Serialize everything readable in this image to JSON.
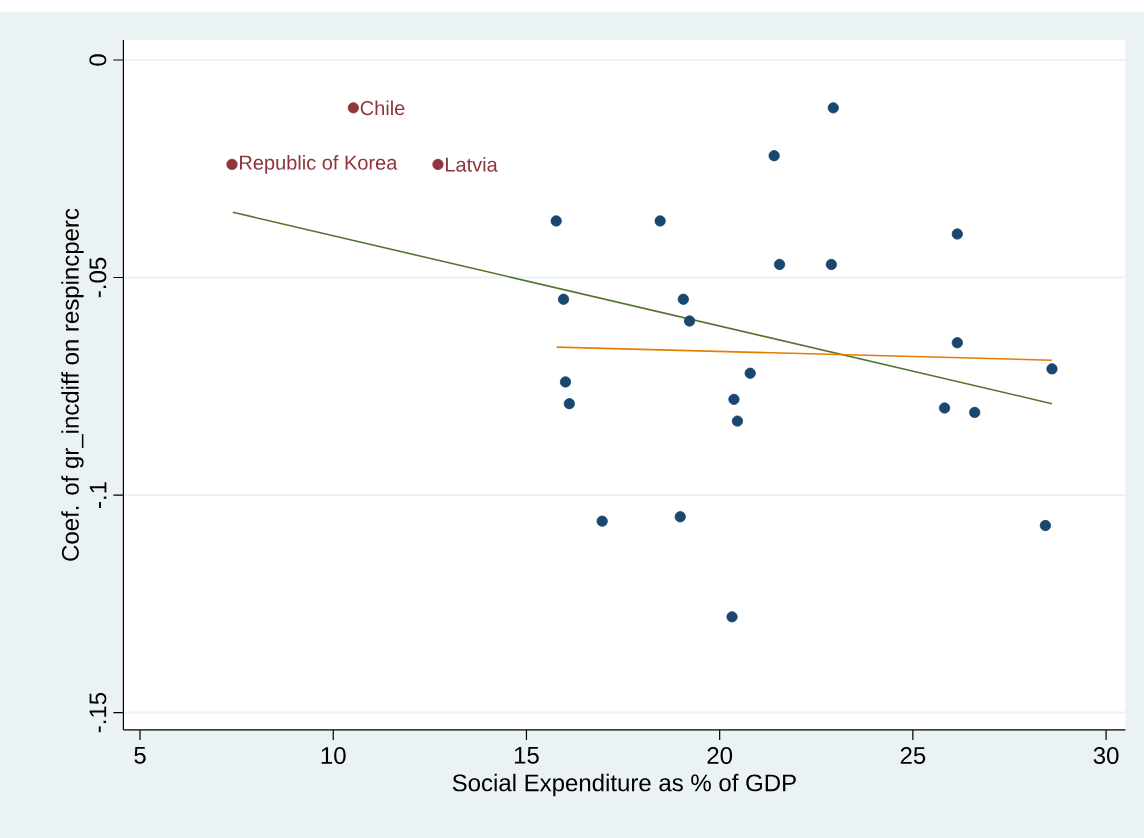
{
  "chart_data": {
    "type": "scatter",
    "xlabel": "Social Expenditure as % of GDP",
    "ylabel": "Coef. of gr_incdiff on respincperc",
    "xlim": [
      4.57,
      30.5
    ],
    "ylim": [
      -0.154,
      0.0046
    ],
    "xticks": [
      5,
      10,
      15,
      20,
      25,
      30
    ],
    "yticks": [
      {
        "value": 0,
        "label": "0"
      },
      {
        "value": -0.05,
        "label": "-.05"
      },
      {
        "value": -0.1,
        "label": "-.1"
      },
      {
        "value": -0.15,
        "label": "-.15"
      }
    ],
    "grid": "y",
    "series": [
      {
        "marker": "circle",
        "color": "#90353b",
        "x": [
          10.52,
          7.38,
          12.71
        ],
        "values": [
          -0.011,
          -0.024,
          -0.024
        ]
      },
      {
        "marker": "circle",
        "color": "#1a476f",
        "x": [
          15.77,
          15.96,
          16.01,
          16.11,
          16.96,
          18.46,
          21.41,
          22.94,
          21.55,
          22.89,
          26.15,
          19.06,
          19.22,
          26.15,
          28.6,
          20.79,
          20.37,
          20.46,
          25.82,
          26.6,
          18.98,
          28.43,
          20.32
        ],
        "values": [
          -0.037,
          -0.055,
          -0.074,
          -0.079,
          -0.106,
          -0.037,
          -0.022,
          -0.011,
          -0.047,
          -0.047,
          -0.04,
          -0.055,
          -0.06,
          -0.065,
          -0.071,
          -0.072,
          -0.078,
          -0.083,
          -0.08,
          -0.081,
          -0.105,
          -0.107,
          -0.128
        ]
      },
      {
        "type": "line",
        "color": "#55752f",
        "x": [
          7.4,
          28.6
        ],
        "values": [
          -0.035,
          -0.079
        ]
      },
      {
        "type": "line",
        "color": "#e37e00",
        "x": [
          15.78,
          28.6
        ],
        "values": [
          -0.066,
          -0.069
        ]
      }
    ],
    "annotations": [
      {
        "text": "Chile",
        "x": 10.52,
        "y": -0.011
      },
      {
        "text": "Republic of Korea",
        "x": 7.38,
        "y": -0.024
      },
      {
        "text": "Latvia",
        "x": 12.71,
        "y": -0.024
      }
    ]
  }
}
